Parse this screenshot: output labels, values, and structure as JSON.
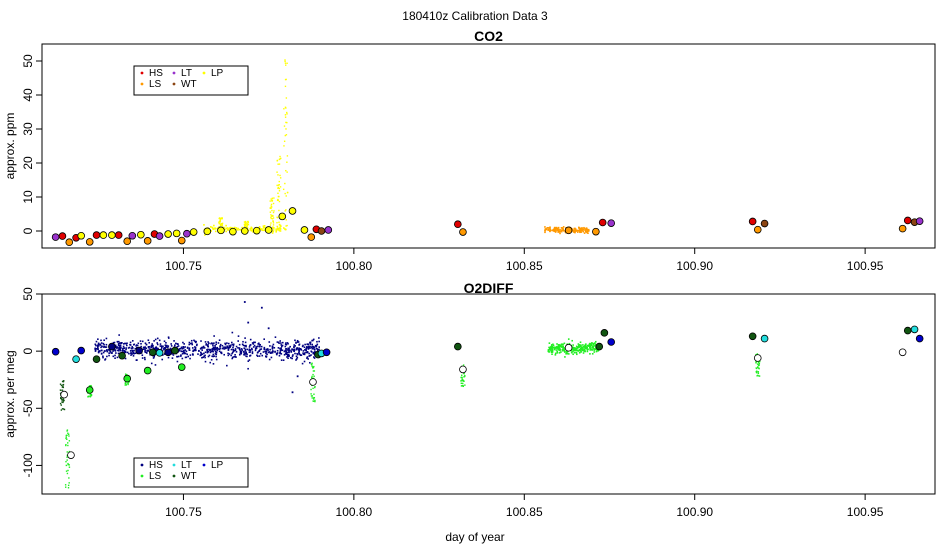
{
  "figure": {
    "title": "180410z   Calibration Data 3",
    "xlabel": "day of year"
  },
  "colors": {
    "HS": "#e00000",
    "LS": "#ff9900",
    "LT": "#9933cc",
    "WT": "#8b4513",
    "LP": "#ffff00",
    "LS_O2": "#22ee22",
    "LT_O2": "#22dddd",
    "WT_O2": "#115511",
    "LP_O2": "#0000cc",
    "bulk_o2": "#000080",
    "open": "#000000"
  },
  "chart_data": [
    {
      "id": "co2",
      "type": "scatter",
      "title": "CO2",
      "ylabel": "approx. ppm",
      "xlim": [
        100.7085,
        100.9705
      ],
      "ylim": [
        -5,
        55
      ],
      "xticks": [
        100.75,
        100.8,
        100.85,
        100.9,
        100.95
      ],
      "xtick_labels": [
        "100.75",
        "100.80",
        "100.85",
        "100.90",
        "100.95"
      ],
      "yticks": [
        0,
        10,
        20,
        30,
        40,
        50
      ],
      "ytick_labels": [
        "0",
        "10",
        "20",
        "30",
        "40",
        "50"
      ],
      "legend": [
        {
          "label": "HS",
          "color": "#e00000"
        },
        {
          "label": "LS",
          "color": "#ff9900"
        },
        {
          "label": "LT",
          "color": "#9933cc"
        },
        {
          "label": "WT",
          "color": "#8b4513"
        },
        {
          "label": "LP",
          "color": "#ffff00"
        }
      ],
      "markers": [
        {
          "x": 100.7125,
          "y": -1.8,
          "color": "#9933cc"
        },
        {
          "x": 100.7145,
          "y": -1.5,
          "color": "#e00000"
        },
        {
          "x": 100.7165,
          "y": -3.3,
          "color": "#ff9900"
        },
        {
          "x": 100.7185,
          "y": -2.0,
          "color": "#e00000"
        },
        {
          "x": 100.72,
          "y": -1.4,
          "color": "#ffff00"
        },
        {
          "x": 100.7225,
          "y": -3.2,
          "color": "#ff9900"
        },
        {
          "x": 100.7245,
          "y": -1.2,
          "color": "#e00000"
        },
        {
          "x": 100.7265,
          "y": -1.2,
          "color": "#ffff00"
        },
        {
          "x": 100.729,
          "y": -1.2,
          "color": "#ffff00"
        },
        {
          "x": 100.731,
          "y": -1.2,
          "color": "#e00000"
        },
        {
          "x": 100.7335,
          "y": -3.0,
          "color": "#ff9900"
        },
        {
          "x": 100.735,
          "y": -1.4,
          "color": "#9933cc"
        },
        {
          "x": 100.7375,
          "y": -1.1,
          "color": "#ffff00"
        },
        {
          "x": 100.7395,
          "y": -2.9,
          "color": "#ff9900"
        },
        {
          "x": 100.7415,
          "y": -0.9,
          "color": "#e00000"
        },
        {
          "x": 100.743,
          "y": -1.5,
          "color": "#9933cc"
        },
        {
          "x": 100.7455,
          "y": -0.9,
          "color": "#ffff00"
        },
        {
          "x": 100.748,
          "y": -0.7,
          "color": "#ffff00"
        },
        {
          "x": 100.7495,
          "y": -2.8,
          "color": "#ff9900"
        },
        {
          "x": 100.751,
          "y": -0.8,
          "color": "#9933cc"
        },
        {
          "x": 100.753,
          "y": -0.3,
          "color": "#ffff00"
        },
        {
          "x": 100.757,
          "y": -0.1,
          "color": "#ffff00"
        },
        {
          "x": 100.761,
          "y": 0.2,
          "color": "#ffff00"
        },
        {
          "x": 100.7645,
          "y": -0.2,
          "color": "#ffff00"
        },
        {
          "x": 100.768,
          "y": 0.0,
          "color": "#ffff00"
        },
        {
          "x": 100.7715,
          "y": 0.1,
          "color": "#ffff00"
        },
        {
          "x": 100.775,
          "y": 0.3,
          "color": "#ffff00"
        },
        {
          "x": 100.779,
          "y": 4.3,
          "color": "#ffff00"
        },
        {
          "x": 100.782,
          "y": 5.9,
          "color": "#ffff00"
        },
        {
          "x": 100.7855,
          "y": 0.3,
          "color": "#ffff00"
        },
        {
          "x": 100.7875,
          "y": -1.8,
          "color": "#ff9900"
        },
        {
          "x": 100.789,
          "y": 0.5,
          "color": "#e00000"
        },
        {
          "x": 100.7905,
          "y": 0.0,
          "color": "#8b4513"
        },
        {
          "x": 100.7925,
          "y": 0.3,
          "color": "#9933cc"
        },
        {
          "x": 100.8305,
          "y": 2.0,
          "color": "#e00000"
        },
        {
          "x": 100.832,
          "y": -0.3,
          "color": "#ff9900"
        },
        {
          "x": 100.863,
          "y": 0.2,
          "color": "#ff9900"
        },
        {
          "x": 100.871,
          "y": -0.2,
          "color": "#ff9900"
        },
        {
          "x": 100.873,
          "y": 2.5,
          "color": "#e00000"
        },
        {
          "x": 100.8755,
          "y": 2.3,
          "color": "#9933cc"
        },
        {
          "x": 100.917,
          "y": 2.8,
          "color": "#e00000"
        },
        {
          "x": 100.9185,
          "y": 0.4,
          "color": "#ff9900"
        },
        {
          "x": 100.9205,
          "y": 2.2,
          "color": "#8b4513"
        },
        {
          "x": 100.961,
          "y": 0.7,
          "color": "#ff9900"
        },
        {
          "x": 100.9625,
          "y": 3.1,
          "color": "#e00000"
        },
        {
          "x": 100.9645,
          "y": 2.6,
          "color": "#8b4513"
        },
        {
          "x": 100.966,
          "y": 2.9,
          "color": "#9933cc"
        }
      ],
      "bands": [
        {
          "x0": 100.856,
          "x1": 100.869,
          "y": 0.3,
          "spread": 0.7,
          "color": "#ff9900",
          "n": 150
        },
        {
          "x0": 100.756,
          "x1": 100.78,
          "y": 0.5,
          "spread": 0.8,
          "color": "#ffff00",
          "n": 140
        }
      ],
      "spikes": [
        {
          "x": 100.778,
          "ymax": 22,
          "color": "#ffff00"
        },
        {
          "x": 100.78,
          "ymax": 54,
          "color": "#ffff00"
        },
        {
          "x": 100.776,
          "ymax": 10,
          "color": "#ffff00"
        },
        {
          "x": 100.761,
          "ymax": 4,
          "color": "#ffff00"
        },
        {
          "x": 100.7685,
          "ymax": 3,
          "color": "#ffff00"
        }
      ]
    },
    {
      "id": "o2diff",
      "type": "scatter",
      "title": "O2DIFF",
      "ylabel": "approx. per meg",
      "xlim": [
        100.7085,
        100.9705
      ],
      "ylim": [
        -125,
        50
      ],
      "xticks": [
        100.75,
        100.8,
        100.85,
        100.9,
        100.95
      ],
      "xtick_labels": [
        "100.75",
        "100.80",
        "100.85",
        "100.90",
        "100.95"
      ],
      "yticks": [
        -100,
        -50,
        0,
        50
      ],
      "ytick_labels": [
        "-100",
        "-50",
        "0",
        "50"
      ],
      "legend": [
        {
          "label": "HS",
          "color": "#000080"
        },
        {
          "label": "LS",
          "color": "#22ee22"
        },
        {
          "label": "LT",
          "color": "#22dddd"
        },
        {
          "label": "WT",
          "color": "#115511"
        },
        {
          "label": "LP",
          "color": "#0000cc"
        }
      ],
      "markers": [
        {
          "x": 100.7125,
          "y": -0.5,
          "color": "#0000cc"
        },
        {
          "x": 100.715,
          "y": -38,
          "color": "#ffffff"
        },
        {
          "x": 100.717,
          "y": -91,
          "color": "#ffffff"
        },
        {
          "x": 100.7185,
          "y": -7,
          "color": "#22dddd"
        },
        {
          "x": 100.72,
          "y": 0.5,
          "color": "#0000cc"
        },
        {
          "x": 100.7225,
          "y": -34,
          "color": "#22ee22"
        },
        {
          "x": 100.7245,
          "y": -7,
          "color": "#115511"
        },
        {
          "x": 100.729,
          "y": 4,
          "color": "#000080"
        },
        {
          "x": 100.732,
          "y": -4,
          "color": "#115511"
        },
        {
          "x": 100.7335,
          "y": -24,
          "color": "#22ee22"
        },
        {
          "x": 100.737,
          "y": 0.5,
          "color": "#000080"
        },
        {
          "x": 100.7395,
          "y": -17,
          "color": "#22ee22"
        },
        {
          "x": 100.741,
          "y": -1,
          "color": "#115511"
        },
        {
          "x": 100.743,
          "y": -1.5,
          "color": "#22dddd"
        },
        {
          "x": 100.7455,
          "y": -1,
          "color": "#000080"
        },
        {
          "x": 100.7475,
          "y": 0.5,
          "color": "#115511"
        },
        {
          "x": 100.7495,
          "y": -14,
          "color": "#22ee22"
        },
        {
          "x": 100.788,
          "y": -27,
          "color": "#ffffff"
        },
        {
          "x": 100.7895,
          "y": -3,
          "color": "#115511"
        },
        {
          "x": 100.7905,
          "y": -2,
          "color": "#22dddd"
        },
        {
          "x": 100.792,
          "y": -1,
          "color": "#0000cc"
        },
        {
          "x": 100.8305,
          "y": 4,
          "color": "#115511"
        },
        {
          "x": 100.832,
          "y": -16,
          "color": "#ffffff"
        },
        {
          "x": 100.863,
          "y": 3,
          "color": "#ffffff"
        },
        {
          "x": 100.872,
          "y": 4,
          "color": "#115511"
        },
        {
          "x": 100.8735,
          "y": 16,
          "color": "#115511"
        },
        {
          "x": 100.8755,
          "y": 8,
          "color": "#0000cc"
        },
        {
          "x": 100.917,
          "y": 13,
          "color": "#115511"
        },
        {
          "x": 100.9185,
          "y": -6,
          "color": "#ffffff"
        },
        {
          "x": 100.9205,
          "y": 11,
          "color": "#22dddd"
        },
        {
          "x": 100.961,
          "y": -1,
          "color": "#ffffff"
        },
        {
          "x": 100.9625,
          "y": 18,
          "color": "#115511"
        },
        {
          "x": 100.9645,
          "y": 19,
          "color": "#22dddd"
        },
        {
          "x": 100.966,
          "y": 11,
          "color": "#0000cc"
        }
      ],
      "bands": [
        {
          "x0": 100.724,
          "x1": 100.79,
          "y": 1.5,
          "spread": 7,
          "color": "#000080",
          "n": 900
        },
        {
          "x0": 100.857,
          "x1": 100.872,
          "y": 2.5,
          "spread": 4,
          "color": "#22ee22",
          "n": 280
        }
      ],
      "spikes": [
        {
          "x": 100.716,
          "ymin": -120,
          "ymax": -68,
          "color": "#22ee22"
        },
        {
          "x": 100.7145,
          "ymin": -52,
          "ymax": -25,
          "color": "#115511"
        },
        {
          "x": 100.788,
          "ymin": -45,
          "ymax": -10,
          "color": "#22ee22"
        },
        {
          "x": 100.832,
          "ymin": -31,
          "ymax": -12,
          "color": "#22ee22"
        },
        {
          "x": 100.9185,
          "ymin": -22,
          "ymax": -1,
          "color": "#22ee22"
        },
        {
          "x": 100.7225,
          "ymin": -40,
          "ymax": -30,
          "color": "#22ee22"
        },
        {
          "x": 100.7335,
          "ymin": -30,
          "ymax": -20,
          "color": "#22ee22"
        }
      ],
      "outliers": [
        {
          "x": 100.768,
          "y": 43,
          "color": "#000080"
        },
        {
          "x": 100.773,
          "y": 38,
          "color": "#000080"
        },
        {
          "x": 100.769,
          "y": 25,
          "color": "#000080"
        },
        {
          "x": 100.782,
          "y": -36,
          "color": "#000080"
        },
        {
          "x": 100.775,
          "y": 20,
          "color": "#000080"
        },
        {
          "x": 100.7835,
          "y": -22,
          "color": "#000080"
        }
      ]
    }
  ]
}
